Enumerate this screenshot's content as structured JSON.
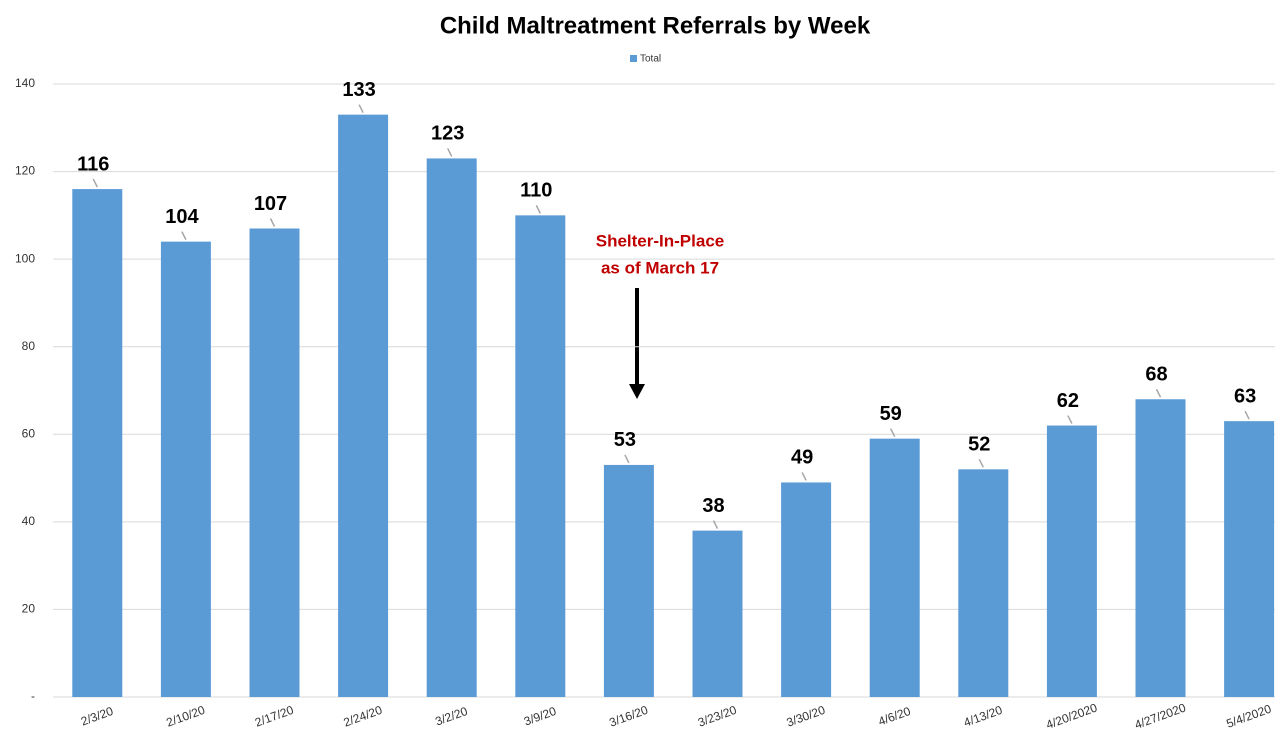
{
  "chart_data": {
    "type": "bar",
    "title": "Child Maltreatment Referrals by Week",
    "categories": [
      "2/3/20",
      "2/10/20",
      "2/17/20",
      "2/24/20",
      "3/2/20",
      "3/9/20",
      "3/16/20",
      "3/23/20",
      "3/30/20",
      "4/6/20",
      "4/13/20",
      "4/20/2020",
      "4/27/2020",
      "5/4/2020"
    ],
    "series": [
      {
        "name": "Total",
        "color": "#5b9bd5",
        "values": [
          116,
          104,
          107,
          133,
          123,
          110,
          53,
          38,
          49,
          59,
          52,
          62,
          68,
          63
        ]
      }
    ],
    "ylim": [
      0,
      140
    ],
    "yticks": [
      {
        "value": 0,
        "label": "-"
      },
      20,
      40,
      60,
      80,
      100,
      120,
      140
    ],
    "grid": true,
    "legend": "top",
    "annotation": [
      "Shelter-In-Place",
      "as of March 17"
    ]
  }
}
